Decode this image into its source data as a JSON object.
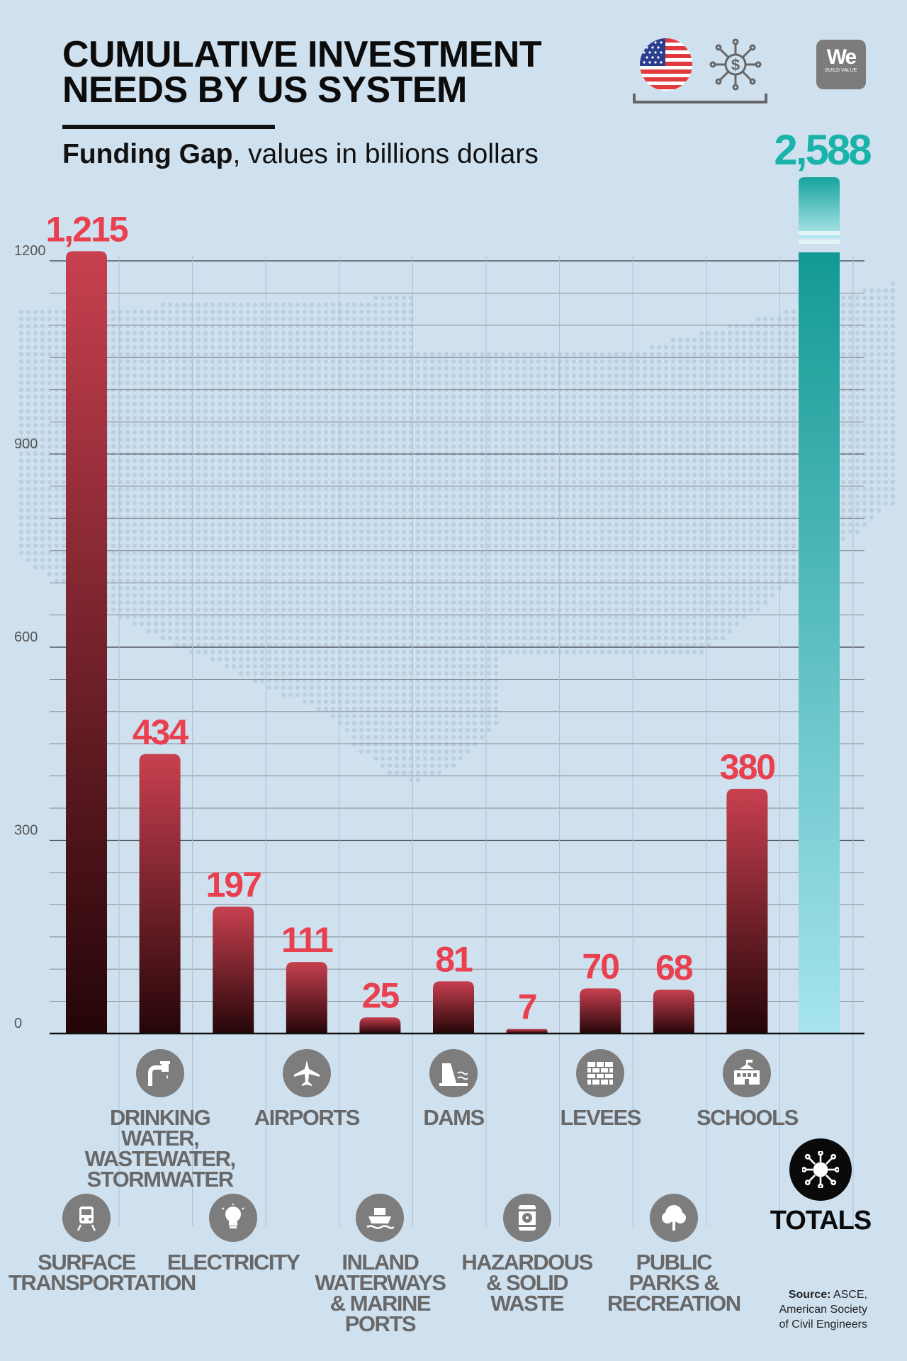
{
  "header": {
    "title_line1": "CUMULATIVE INVESTMENT",
    "title_line2": "NEEDS BY US SYSTEM",
    "subtitle_bold": "Funding Gap",
    "subtitle_rest": ", values in billions dollars",
    "logo_main": "We",
    "logo_sub": "BUILD VALUE",
    "icons": [
      "us-flag-icon",
      "money-network-icon"
    ]
  },
  "colors": {
    "bar_top": "#c8404f",
    "bar_bottom": "#240508",
    "total_top": "#139a95",
    "total_bottom": "#a6e4ee",
    "value_label": "#e8404f",
    "total_label": "#19b3a9",
    "background": "#cfe0ef"
  },
  "chart_data": {
    "type": "bar",
    "title": "CUMULATIVE INVESTMENT NEEDS BY US SYSTEM",
    "subtitle": "Funding Gap, values in billions dollars",
    "categories": [
      "SURFACE TRANSPORTATION",
      "DRINKING WATER, WASTEWATER, STORMWATER",
      "ELECTRICITY",
      "AIRPORTS",
      "INLAND WATERWAYS & MARINE PORTS",
      "DAMS",
      "HAZARDOUS & SOLID WASTE",
      "LEVEES",
      "PUBLIC PARKS & RECREATION",
      "SCHOOLS",
      "TOTALS"
    ],
    "values": [
      1215,
      434,
      197,
      111,
      25,
      81,
      7,
      70,
      68,
      380,
      2588
    ],
    "value_labels": [
      "1,215",
      "434",
      "197",
      "111",
      "25",
      "81",
      "7",
      "70",
      "68",
      "380",
      "2,588"
    ],
    "y_ticks": [
      "0",
      "300",
      "600",
      "900",
      "1200"
    ],
    "ylim": [
      0,
      1200
    ],
    "grid": true,
    "total_bar_broken_axis": true,
    "xlabel": "",
    "ylabel": ""
  },
  "categories_display": [
    {
      "label": "SURFACE\nTRANSPORTATION",
      "icon": "train-icon"
    },
    {
      "label": "DRINKING\nWATER,\nWASTEWATER,\nSTORMWATER",
      "icon": "water-tap-icon"
    },
    {
      "label": "ELECTRICITY",
      "icon": "lightbulb-icon"
    },
    {
      "label": "AIRPORTS",
      "icon": "airplane-icon"
    },
    {
      "label": "INLAND\nWATERWAYS\n& MARINE\nPORTS",
      "icon": "ship-icon"
    },
    {
      "label": "DAMS",
      "icon": "dam-icon"
    },
    {
      "label": "HAZARDOUS\n& SOLID\nWASTE",
      "icon": "hazard-barrel-icon"
    },
    {
      "label": "LEVEES",
      "icon": "brick-wall-icon"
    },
    {
      "label": "PUBLIC\nPARKS &\nRECREATION",
      "icon": "tree-icon"
    },
    {
      "label": "SCHOOLS",
      "icon": "school-icon"
    },
    {
      "label": "TOTALS",
      "icon": "network-hub-icon"
    }
  ],
  "source": {
    "label": "Source:",
    "text": "ASCE,",
    "line2": "American Society",
    "line3": "of Civil Engineers"
  }
}
